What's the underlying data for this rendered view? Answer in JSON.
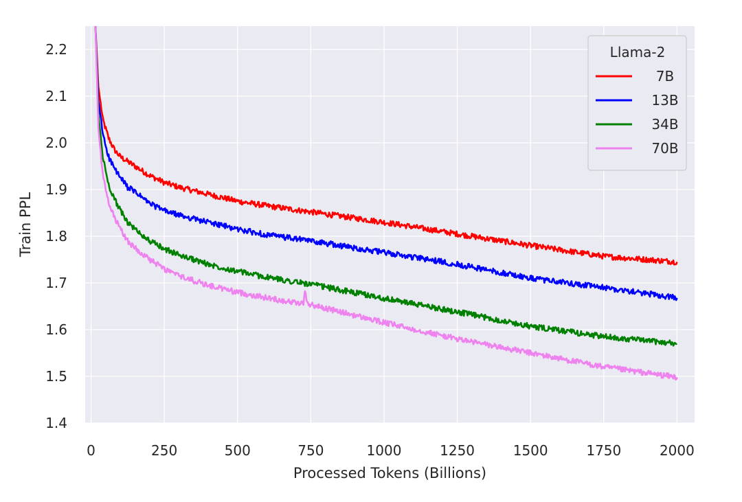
{
  "chart_data": {
    "type": "line",
    "xlabel": "Processed Tokens (Billions)",
    "ylabel": "Train PPL",
    "xlim": [
      -20,
      2060
    ],
    "ylim": [
      1.4,
      2.25
    ],
    "xticks": [
      0,
      250,
      500,
      750,
      1000,
      1250,
      1500,
      1750,
      2000
    ],
    "yticks": [
      1.4,
      1.5,
      1.6,
      1.7,
      1.8,
      1.9,
      2.0,
      2.1,
      2.2
    ],
    "grid": true,
    "legend": {
      "title": "Llama-2",
      "position": "top-right"
    },
    "series": [
      {
        "name": "7B",
        "color": "#ff0000",
        "x": [
          15,
          25,
          40,
          60,
          80,
          100,
          125,
          150,
          200,
          250,
          300,
          400,
          500,
          600,
          750,
          1000,
          1250,
          1500,
          1750,
          2000
        ],
        "y": [
          2.25,
          2.12,
          2.05,
          2.01,
          1.985,
          1.97,
          1.96,
          1.95,
          1.93,
          1.915,
          1.905,
          1.89,
          1.875,
          1.865,
          1.852,
          1.83,
          1.805,
          1.78,
          1.757,
          1.745
        ]
      },
      {
        "name": "13B",
        "color": "#0000ff",
        "x": [
          15,
          25,
          40,
          60,
          80,
          100,
          125,
          150,
          200,
          250,
          300,
          400,
          500,
          600,
          750,
          1000,
          1250,
          1500,
          1750,
          2000
        ],
        "y": [
          2.25,
          2.09,
          2.02,
          1.97,
          1.945,
          1.925,
          1.905,
          1.895,
          1.87,
          1.855,
          1.845,
          1.83,
          1.815,
          1.803,
          1.79,
          1.765,
          1.74,
          1.71,
          1.69,
          1.668
        ]
      },
      {
        "name": "34B",
        "color": "#008000",
        "x": [
          15,
          25,
          40,
          60,
          80,
          100,
          125,
          150,
          200,
          250,
          300,
          400,
          500,
          600,
          750,
          1000,
          1250,
          1500,
          1750,
          2000
        ],
        "y": [
          2.25,
          2.06,
          1.97,
          1.91,
          1.88,
          1.855,
          1.83,
          1.815,
          1.79,
          1.773,
          1.76,
          1.74,
          1.725,
          1.712,
          1.697,
          1.667,
          1.638,
          1.607,
          1.585,
          1.57
        ]
      },
      {
        "name": "70B",
        "color": "#ee82ee",
        "x": [
          15,
          25,
          40,
          60,
          80,
          100,
          125,
          150,
          200,
          250,
          300,
          400,
          500,
          600,
          725,
          730,
          740,
          1000,
          1250,
          1500,
          1750,
          2000
        ],
        "y": [
          2.25,
          2.03,
          1.93,
          1.87,
          1.84,
          1.815,
          1.79,
          1.775,
          1.75,
          1.73,
          1.715,
          1.695,
          1.68,
          1.668,
          1.655,
          1.685,
          1.655,
          1.615,
          1.58,
          1.55,
          1.52,
          1.498
        ]
      }
    ]
  }
}
